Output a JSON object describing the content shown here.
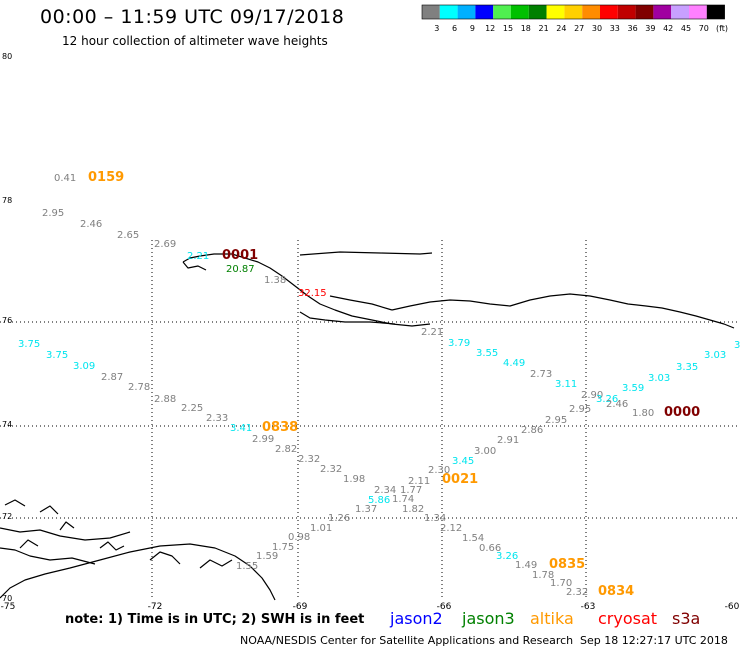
{
  "header": {
    "title": "00:00 – 11:59 UTC 09/17/2018",
    "subtitle": "12 hour collection of altimeter wave heights"
  },
  "legend": {
    "unit": "(ft)",
    "bins": [
      {
        "label": "3",
        "color": "#808080"
      },
      {
        "label": "6",
        "color": "#00ffff"
      },
      {
        "label": "9",
        "color": "#00b0ff"
      },
      {
        "label": "12",
        "color": "#0000ff"
      },
      {
        "label": "15",
        "color": "#50f050"
      },
      {
        "label": "18",
        "color": "#00c000"
      },
      {
        "label": "21",
        "color": "#008000"
      },
      {
        "label": "24",
        "color": "#ffff00"
      },
      {
        "label": "27",
        "color": "#ffd000"
      },
      {
        "label": "30",
        "color": "#ff8c00"
      },
      {
        "label": "33",
        "color": "#ff0000"
      },
      {
        "label": "36",
        "color": "#c00000"
      },
      {
        "label": "39",
        "color": "#800000"
      },
      {
        "label": "42",
        "color": "#a000a0"
      },
      {
        "label": "45",
        "color": "#c8a0ff"
      },
      {
        "label": "70",
        "color": "#ff80ff"
      },
      {
        "label": "",
        "color": "#000000"
      }
    ]
  },
  "axes": {
    "lat_labels": [
      "80",
      "78",
      "76",
      "74",
      "72",
      "70"
    ],
    "lon_labels": [
      "-75",
      "-72",
      "-69",
      "-66",
      "-63",
      "-60"
    ]
  },
  "map_readings": [
    {
      "text": "0.41",
      "color": "#808080"
    },
    {
      "text": "0159",
      "color": "#ff9900"
    },
    {
      "text": "2.95",
      "color": "#808080"
    },
    {
      "text": "2.46",
      "color": "#808080"
    },
    {
      "text": "2.65",
      "color": "#808080"
    },
    {
      "text": "2.69",
      "color": "#808080"
    },
    {
      "text": "2.21",
      "color": "#00e5ee"
    },
    {
      "text": "0001",
      "color": "#800000"
    },
    {
      "text": "20.87",
      "color": "#008000"
    },
    {
      "text": "1.38",
      "color": "#808080"
    },
    {
      "text": "32.15",
      "color": "#ff0000"
    },
    {
      "text": "2.21",
      "color": "#808080"
    },
    {
      "text": "3.75",
      "color": "#00e5ee"
    },
    {
      "text": "3.75",
      "color": "#00e5ee"
    },
    {
      "text": "3.09",
      "color": "#00e5ee"
    },
    {
      "text": "2.87",
      "color": "#808080"
    },
    {
      "text": "2.78",
      "color": "#808080"
    },
    {
      "text": "2.88",
      "color": "#808080"
    },
    {
      "text": "2.25",
      "color": "#808080"
    },
    {
      "text": "2.33",
      "color": "#808080"
    },
    {
      "text": "3.41",
      "color": "#00e5ee"
    },
    {
      "text": "0838",
      "color": "#ff9900"
    },
    {
      "text": "2.99",
      "color": "#808080"
    },
    {
      "text": "2.82",
      "color": "#808080"
    },
    {
      "text": "2.32",
      "color": "#808080"
    },
    {
      "text": "2.32",
      "color": "#808080"
    },
    {
      "text": "1.98",
      "color": "#808080"
    },
    {
      "text": "2.34",
      "color": "#808080"
    },
    {
      "text": "1.77",
      "color": "#808080"
    },
    {
      "text": "5.86",
      "color": "#00e5ee"
    },
    {
      "text": "1.74",
      "color": "#808080"
    },
    {
      "text": "1.37",
      "color": "#808080"
    },
    {
      "text": "1.82",
      "color": "#808080"
    },
    {
      "text": "1.26",
      "color": "#808080"
    },
    {
      "text": "1.01",
      "color": "#808080"
    },
    {
      "text": "0.98",
      "color": "#808080"
    },
    {
      "text": "1.75",
      "color": "#808080"
    },
    {
      "text": "1.59",
      "color": "#808080"
    },
    {
      "text": "1.55",
      "color": "#808080"
    },
    {
      "text": "3.79",
      "color": "#00e5ee"
    },
    {
      "text": "3.55",
      "color": "#00e5ee"
    },
    {
      "text": "4.49",
      "color": "#00e5ee"
    },
    {
      "text": "2.73",
      "color": "#808080"
    },
    {
      "text": "3.11",
      "color": "#00e5ee"
    },
    {
      "text": "2.90",
      "color": "#808080"
    },
    {
      "text": "3.26",
      "color": "#00e5ee"
    },
    {
      "text": "2.46",
      "color": "#808080"
    },
    {
      "text": "2.95",
      "color": "#808080"
    },
    {
      "text": "2.95",
      "color": "#808080"
    },
    {
      "text": "1.80",
      "color": "#808080"
    },
    {
      "text": "3.59",
      "color": "#00e5ee"
    },
    {
      "text": "3.03",
      "color": "#00e5ee"
    },
    {
      "text": "3.35",
      "color": "#00e5ee"
    },
    {
      "text": "3.03",
      "color": "#00e5ee"
    },
    {
      "text": "3",
      "color": "#00e5ee"
    },
    {
      "text": "0000",
      "color": "#800000"
    },
    {
      "text": "2.86",
      "color": "#808080"
    },
    {
      "text": "2.91",
      "color": "#808080"
    },
    {
      "text": "3.00",
      "color": "#808080"
    },
    {
      "text": "3.45",
      "color": "#00e5ee"
    },
    {
      "text": "2.30",
      "color": "#808080"
    },
    {
      "text": "2.11",
      "color": "#808080"
    },
    {
      "text": "0021",
      "color": "#ff9900"
    },
    {
      "text": "1.34",
      "color": "#808080"
    },
    {
      "text": "2.12",
      "color": "#808080"
    },
    {
      "text": "1.54",
      "color": "#808080"
    },
    {
      "text": "0.66",
      "color": "#808080"
    },
    {
      "text": "3.26",
      "color": "#00e5ee"
    },
    {
      "text": "1.49",
      "color": "#808080"
    },
    {
      "text": "0835",
      "color": "#ff9900"
    },
    {
      "text": "1.78",
      "color": "#808080"
    },
    {
      "text": "1.70",
      "color": "#808080"
    },
    {
      "text": "2.32",
      "color": "#808080"
    },
    {
      "text": "0834",
      "color": "#ff9900"
    }
  ],
  "footer": {
    "note": "note:  1) Time is in UTC;  2) SWH is in feet",
    "satellites": [
      {
        "name": "jason2",
        "color": "#0000ff"
      },
      {
        "name": "jason3",
        "color": "#008000"
      },
      {
        "name": "altika",
        "color": "#ff9900"
      },
      {
        "name": "cryosat",
        "color": "#ff0000"
      },
      {
        "name": "s3a",
        "color": "#800000"
      }
    ],
    "credit": "NOAA/NESDIS Center for Satellite Applications and Research",
    "timestamp": "Sep 18 12:27:17 UTC 2018"
  }
}
